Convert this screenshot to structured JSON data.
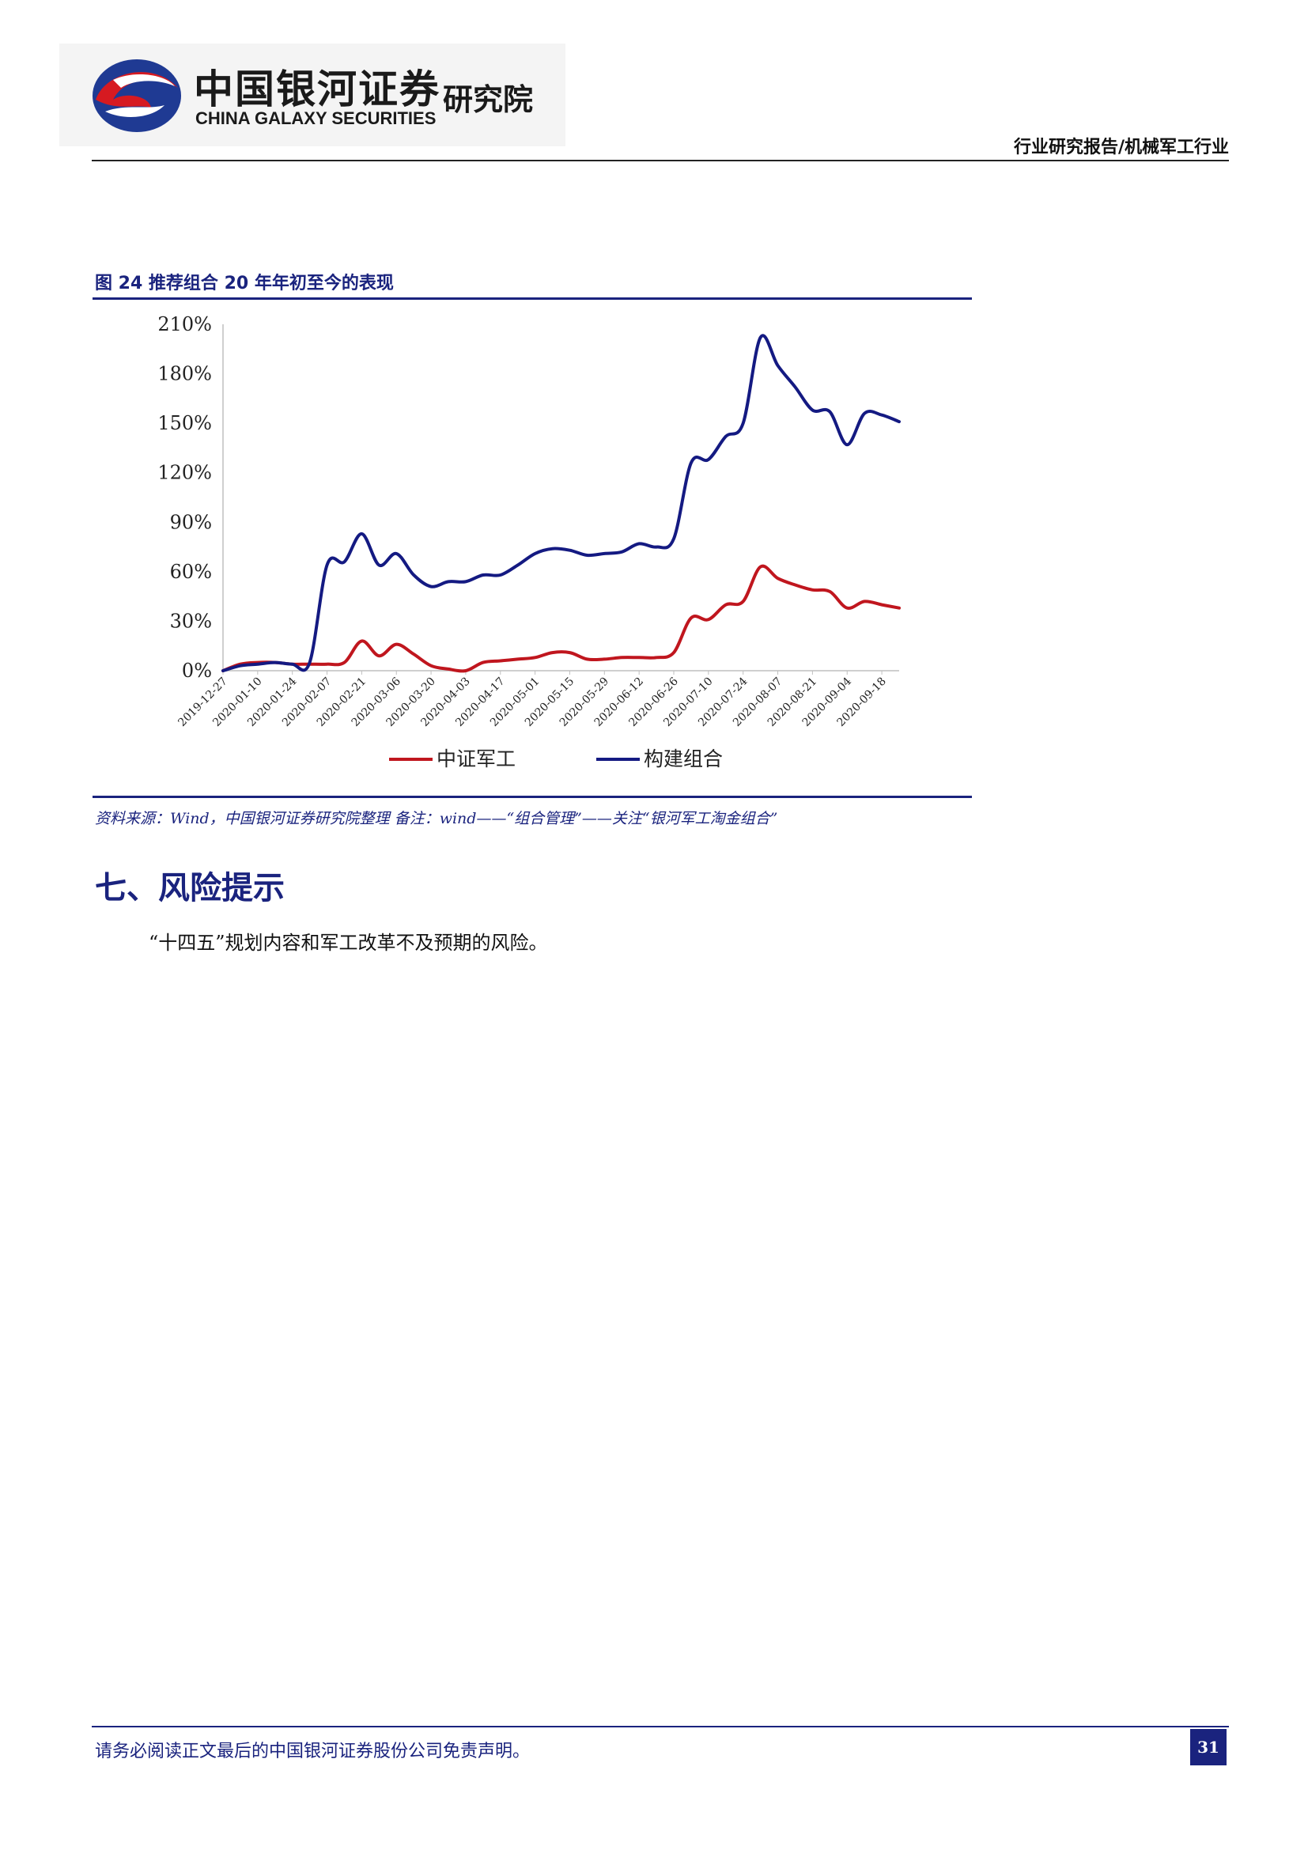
{
  "header": {
    "logo_cn": "中国银河证券",
    "logo_en": "CHINA GALAXY SECURITIES",
    "logo_institute": "研究院",
    "report_category": "行业研究报告/机械军工行业"
  },
  "figure": {
    "title": "图 24 推荐组合 20 年年初至今的表现",
    "source": "资料来源：Wind，中国银河证券研究院整理   备注：wind——“组合管理”——关注“银河军工淘金组合”"
  },
  "section": {
    "title": "七、风险提示",
    "paragraph": "“十四五”规划内容和军工改革不及预期的风险。"
  },
  "footer": {
    "disclaimer": "请务必阅读正文最后的中国银河证券股份公司免责声明。",
    "page_number": "31"
  },
  "colors": {
    "brand_blue": "#1a237e",
    "series_red": "#c0161e",
    "series_blue": "#141a82"
  },
  "chart_data": {
    "type": "line",
    "title": "",
    "xlabel": "",
    "ylabel": "",
    "ylim": [
      0,
      210
    ],
    "yticks": [
      "0%",
      "30%",
      "60%",
      "90%",
      "120%",
      "150%",
      "180%",
      "210%"
    ],
    "ytick_values": [
      0,
      30,
      60,
      90,
      120,
      150,
      180,
      210
    ],
    "x": [
      "2019-12-27",
      "2020-01-10",
      "2020-01-24",
      "2020-02-07",
      "2020-02-21",
      "2020-03-06",
      "2020-03-20",
      "2020-04-03",
      "2020-04-17",
      "2020-05-01",
      "2020-05-15",
      "2020-05-29",
      "2020-06-12",
      "2020-06-26",
      "2020-07-10",
      "2020-07-24",
      "2020-08-07",
      "2020-08-21",
      "2020-09-04",
      "2020-09-18"
    ],
    "x_values": [
      "2019-12-27",
      "2020-01-03",
      "2020-01-10",
      "2020-01-17",
      "2020-01-24",
      "2020-01-31",
      "2020-02-07",
      "2020-02-14",
      "2020-02-21",
      "2020-02-28",
      "2020-03-06",
      "2020-03-13",
      "2020-03-20",
      "2020-03-27",
      "2020-04-03",
      "2020-04-10",
      "2020-04-17",
      "2020-04-24",
      "2020-05-01",
      "2020-05-08",
      "2020-05-15",
      "2020-05-22",
      "2020-05-29",
      "2020-06-05",
      "2020-06-12",
      "2020-06-19",
      "2020-06-26",
      "2020-07-03",
      "2020-07-10",
      "2020-07-17",
      "2020-07-24",
      "2020-07-31",
      "2020-08-07",
      "2020-08-14",
      "2020-08-21",
      "2020-08-28",
      "2020-09-04",
      "2020-09-11",
      "2020-09-18",
      "2020-09-25"
    ],
    "legend_position": "bottom",
    "grid": false,
    "series": [
      {
        "name": "中证军工",
        "color": "#c0161e",
        "values": [
          0,
          4,
          5,
          5,
          4,
          4,
          4,
          5,
          18,
          9,
          16,
          10,
          3,
          1,
          0,
          5,
          6,
          7,
          8,
          11,
          11,
          7,
          7,
          8,
          8,
          8,
          11,
          32,
          31,
          40,
          42,
          63,
          56,
          52,
          49,
          48,
          38,
          42,
          40,
          38
        ]
      },
      {
        "name": "构建组合",
        "color": "#141a82",
        "values": [
          0,
          3,
          4,
          5,
          4,
          5,
          64,
          66,
          83,
          64,
          71,
          58,
          51,
          54,
          54,
          58,
          58,
          64,
          71,
          74,
          73,
          70,
          71,
          72,
          77,
          75,
          80,
          126,
          128,
          142,
          150,
          202,
          185,
          172,
          158,
          157,
          137,
          156,
          155,
          151
        ]
      }
    ]
  }
}
